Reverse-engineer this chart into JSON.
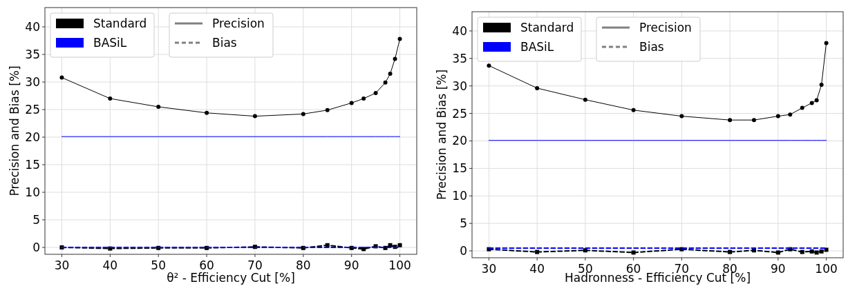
{
  "chart_data": [
    {
      "type": "line",
      "xlabel": "θ² - Efficiency Cut [%]",
      "ylabel": "Precision and Bias [%]",
      "xlim": [
        26.5,
        103.5
      ],
      "ylim": [
        -1.25,
        43.5
      ],
      "xticks": [
        30,
        40,
        50,
        60,
        70,
        80,
        90,
        100
      ],
      "yticks": [
        0,
        5,
        10,
        15,
        20,
        25,
        30,
        35,
        40
      ],
      "grid": true,
      "legend": "top left",
      "annotations": [
        "Precision",
        "Bias"
      ],
      "x": [
        30,
        40,
        50,
        60,
        70,
        80,
        85,
        90,
        92.5,
        95,
        97,
        98,
        99,
        100
      ],
      "series": [
        {
          "name": "Standard",
          "color": "#000000",
          "line_style": "solid",
          "marker": "circle",
          "values": [
            30.8,
            27.0,
            25.5,
            24.4,
            23.8,
            24.2,
            24.9,
            26.2,
            27.0,
            28.0,
            29.9,
            31.5,
            34.2,
            37.8
          ]
        },
        {
          "name": "BASiL",
          "color": "#0000ff",
          "line_style": "solid",
          "marker": "none",
          "values": [
            20.1,
            20.1,
            20.1,
            20.1,
            20.1,
            20.1,
            20.1,
            20.1,
            20.1,
            20.1,
            20.1,
            20.1,
            20.1,
            20.1
          ]
        },
        {
          "color": "#000000",
          "line_style": "dashed",
          "marker": "square",
          "values": [
            0.0,
            -0.2,
            -0.1,
            -0.1,
            0.1,
            -0.1,
            0.4,
            -0.1,
            -0.3,
            0.2,
            -0.1,
            0.4,
            0.1,
            0.4
          ]
        },
        {
          "color": "#0000ff",
          "line_style": "dashed",
          "marker": "none",
          "values": [
            0.0,
            0.0,
            0.0,
            0.0,
            0.0,
            0.0,
            0.0,
            0.0,
            0.0,
            0.0,
            0.0,
            0.0,
            0.0,
            0.0
          ]
        }
      ]
    },
    {
      "type": "line",
      "xlabel": "Hadronness - Efficiency Cut [%]",
      "ylabel": "Precision and Bias [%]",
      "xlim": [
        26.5,
        103.5
      ],
      "ylim": [
        -1.25,
        43.5
      ],
      "xticks": [
        30,
        40,
        50,
        60,
        70,
        80,
        90,
        100
      ],
      "yticks": [
        0,
        5,
        10,
        15,
        20,
        25,
        30,
        35,
        40
      ],
      "grid": true,
      "legend": "top left",
      "annotations": [
        "Precision",
        "Bias"
      ],
      "x": [
        30,
        40,
        50,
        60,
        70,
        80,
        85,
        90,
        92.5,
        95,
        97,
        98,
        99,
        100
      ],
      "series": [
        {
          "name": "Standard",
          "color": "#000000",
          "line_style": "solid",
          "marker": "circle",
          "values": [
            33.7,
            29.6,
            27.5,
            25.6,
            24.5,
            23.8,
            23.8,
            24.5,
            24.8,
            26.0,
            26.9,
            27.4,
            30.2,
            37.8
          ]
        },
        {
          "name": "BASiL",
          "color": "#0000ff",
          "line_style": "solid",
          "marker": "none",
          "values": [
            20.1,
            20.1,
            20.1,
            20.1,
            20.1,
            20.1,
            20.1,
            20.1,
            20.1,
            20.1,
            20.1,
            20.1,
            20.1,
            20.1
          ]
        },
        {
          "color": "#000000",
          "line_style": "dashed",
          "marker": "square",
          "values": [
            0.3,
            -0.2,
            0.1,
            -0.3,
            0.3,
            -0.2,
            0.1,
            -0.3,
            0.3,
            -0.2,
            -0.1,
            -0.3,
            -0.1,
            0.2
          ]
        },
        {
          "color": "#0000ff",
          "line_style": "dashed",
          "marker": "none",
          "values": [
            0.5,
            0.5,
            0.5,
            0.5,
            0.5,
            0.5,
            0.5,
            0.5,
            0.5,
            0.5,
            0.5,
            0.5,
            0.5,
            0.5
          ]
        }
      ]
    }
  ]
}
